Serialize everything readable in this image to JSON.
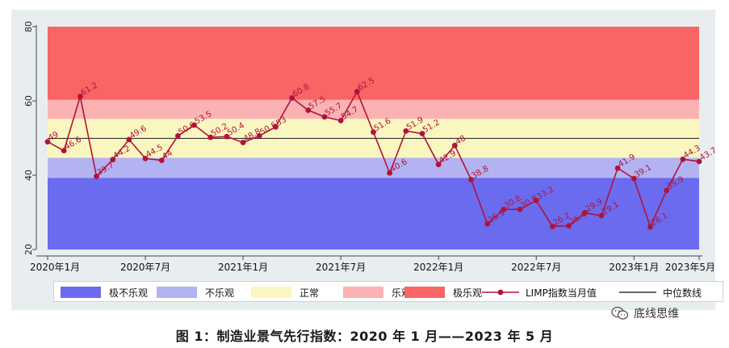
{
  "chart_data": {
    "type": "line",
    "x_tick_labels": [
      "2020年1月",
      "2020年7月",
      "2021年1月",
      "2021年7月",
      "2022年1月",
      "2022年7月",
      "2023年1月",
      "2023年5月"
    ],
    "x_tick_indices": [
      0,
      6,
      12,
      18,
      24,
      30,
      36,
      40
    ],
    "ylim": [
      20,
      80
    ],
    "yticks": [
      20,
      40,
      60,
      80
    ],
    "bands": [
      {
        "name": "极不乐观",
        "from": 20,
        "to": 39.3,
        "color": "#6b6bf0"
      },
      {
        "name": "不乐观",
        "from": 39.3,
        "to": 44.7,
        "color": "#b3b3f2"
      },
      {
        "name": "正常",
        "from": 44.7,
        "to": 55.2,
        "color": "#faf6bf"
      },
      {
        "name": "乐观",
        "from": 55.2,
        "to": 60.3,
        "color": "#fbb2b3"
      },
      {
        "name": "极乐观",
        "from": 60.3,
        "to": 80,
        "color": "#f96464"
      }
    ],
    "median": {
      "name": "中位数线",
      "value": 49.9,
      "color": "#333333"
    },
    "series": [
      {
        "name": "LIMP指数当月值",
        "color": "#b0123a",
        "months": [
          "2020-01",
          "2020-02",
          "2020-03",
          "2020-04",
          "2020-05",
          "2020-06",
          "2020-07",
          "2020-08",
          "2020-09",
          "2020-10",
          "2020-11",
          "2020-12",
          "2021-01",
          "2021-02",
          "2021-03",
          "2021-04",
          "2021-05",
          "2021-06",
          "2021-07",
          "2021-08",
          "2021-09",
          "2021-10",
          "2021-11",
          "2021-12",
          "2022-01",
          "2022-02",
          "2022-03",
          "2022-04",
          "2022-05",
          "2022-06",
          "2022-07",
          "2022-08",
          "2022-09",
          "2022-10",
          "2022-11",
          "2022-12",
          "2023-01",
          "2023-02",
          "2023-03",
          "2023-04",
          "2023-05"
        ],
        "values": [
          49,
          46.6,
          61.2,
          39.7,
          44.2,
          49.6,
          44.5,
          44,
          50.6,
          53.5,
          50.2,
          50.4,
          48.8,
          50.6,
          53,
          60.8,
          57.5,
          55.7,
          54.7,
          62.5,
          51.6,
          40.6,
          51.9,
          51.2,
          42.9,
          48,
          38.8,
          26.9,
          30.8,
          30.8,
          33.2,
          26.2,
          26.4,
          29.9,
          29.1,
          41.9,
          39.1,
          26.1,
          35.9,
          44.3,
          43.7
        ],
        "labels": [
          "49",
          "46.6",
          "61.2",
          "39.7",
          "44.2",
          "49.6",
          "44.5",
          "44",
          "50.6",
          "53.5",
          "50.2",
          "50.4",
          "48.8",
          "50.6",
          "53",
          "60.8",
          "57.5",
          "55.7",
          "54.7",
          "62.5",
          "51.6",
          "40.6",
          "51.9",
          "51.2",
          "42.9",
          "48",
          "38.8",
          "26.9",
          "30.8",
          "30.8",
          "33.2",
          "26.2",
          "26.4",
          "29.9",
          "29.1",
          "41.9",
          "39.1",
          "26.1",
          "35.9",
          "44.3",
          "43.7"
        ]
      }
    ],
    "legend_position": "bottom"
  },
  "legend": {
    "items": [
      {
        "label": "极不乐观",
        "kind": "swatch",
        "color": "#6b6bf0"
      },
      {
        "label": "不乐观",
        "kind": "swatch",
        "color": "#b3b3f2"
      },
      {
        "label": "正常",
        "kind": "swatch",
        "color": "#faf6bf"
      },
      {
        "label": "乐观",
        "kind": "swatch",
        "color": "#fbb2b3"
      },
      {
        "label": "极乐观",
        "kind": "swatch",
        "color": "#f96464"
      },
      {
        "label": "LIMP指数当月值",
        "kind": "marker-line",
        "color": "#b0123a"
      },
      {
        "label": "中位数线",
        "kind": "line",
        "color": "#333333"
      }
    ]
  },
  "caption": "图 1：制造业景气先行指数：2020 年 1 月——2023 年 5 月",
  "watermark": {
    "text": "底线思维",
    "icon": "wechat-icon"
  }
}
